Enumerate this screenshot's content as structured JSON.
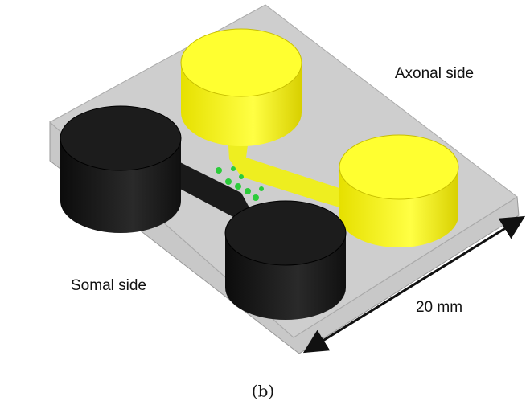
{
  "labels": {
    "axonal": "Axonal side",
    "somal": "Somal side",
    "scale": "20 mm"
  },
  "caption": "(b)"
}
